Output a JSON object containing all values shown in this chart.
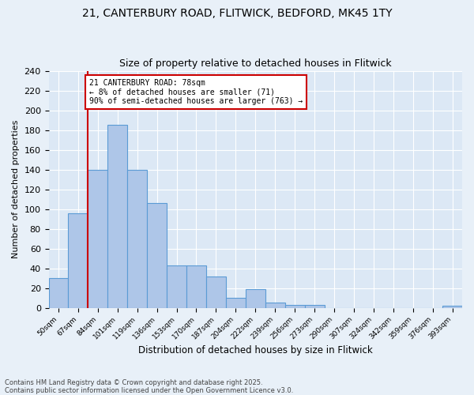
{
  "title1": "21, CANTERBURY ROAD, FLITWICK, BEDFORD, MK45 1TY",
  "title2": "Size of property relative to detached houses in Flitwick",
  "xlabel": "Distribution of detached houses by size in Flitwick",
  "ylabel": "Number of detached properties",
  "bar_labels": [
    "50sqm",
    "67sqm",
    "84sqm",
    "101sqm",
    "119sqm",
    "136sqm",
    "153sqm",
    "170sqm",
    "187sqm",
    "204sqm",
    "222sqm",
    "239sqm",
    "256sqm",
    "273sqm",
    "290sqm",
    "307sqm",
    "324sqm",
    "342sqm",
    "359sqm",
    "376sqm",
    "393sqm"
  ],
  "bar_values": [
    30,
    96,
    140,
    185,
    140,
    106,
    43,
    43,
    32,
    10,
    19,
    5,
    3,
    3,
    0,
    0,
    0,
    0,
    0,
    0,
    2
  ],
  "bar_color": "#aec6e8",
  "bar_edge_color": "#5b9bd5",
  "vline_x": 1.5,
  "vline_color": "#cc0000",
  "annotation_title": "21 CANTERBURY ROAD: 78sqm",
  "annotation_line1": "← 8% of detached houses are smaller (71)",
  "annotation_line2": "90% of semi-detached houses are larger (763) →",
  "annotation_box_color": "#ffffff",
  "annotation_box_edge": "#cc0000",
  "footer_line1": "Contains HM Land Registry data © Crown copyright and database right 2025.",
  "footer_line2": "Contains public sector information licensed under the Open Government Licence v3.0.",
  "ylim": [
    0,
    240
  ],
  "yticks": [
    0,
    20,
    40,
    60,
    80,
    100,
    120,
    140,
    160,
    180,
    200,
    220,
    240
  ],
  "fig_facecolor": "#e8f0f8",
  "ax_facecolor": "#dce8f5",
  "grid_color": "#ffffff",
  "title_fontsize": 10,
  "subtitle_fontsize": 9,
  "footer_fontsize": 6
}
